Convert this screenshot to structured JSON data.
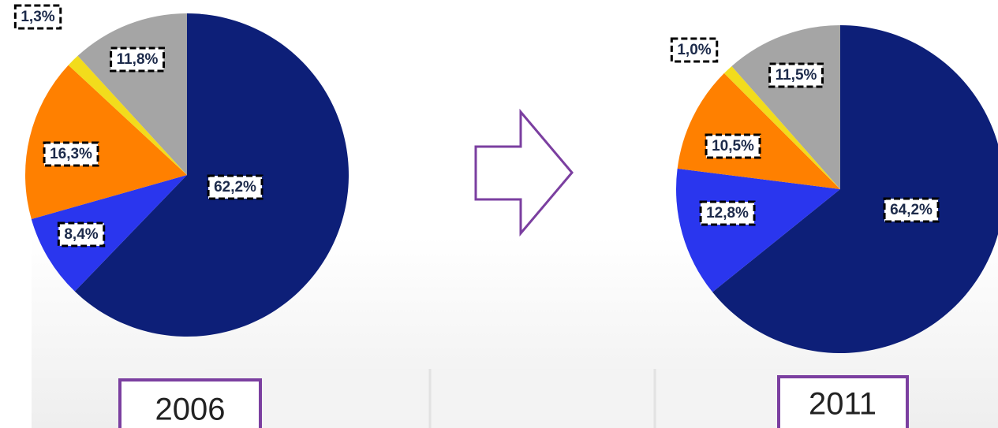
{
  "chart_data": [
    {
      "type": "pie",
      "title": "2006",
      "values": [
        62.2,
        8.4,
        16.3,
        1.3,
        11.8
      ],
      "value_labels": [
        "62,2%",
        "8,4%",
        "16,3%",
        "1,3%",
        "11,8%"
      ],
      "colors": [
        "#0d1f78",
        "#2a36ee",
        "#ff8000",
        "#f2dc1c",
        "#a5a5a5"
      ]
    },
    {
      "type": "pie",
      "title": "2011",
      "values": [
        64.2,
        12.8,
        10.5,
        1.0,
        11.5
      ],
      "value_labels": [
        "64,2%",
        "12,8%",
        "10,5%",
        "1,0%",
        "11,5%"
      ],
      "colors": [
        "#0d1f78",
        "#2a36ee",
        "#ff8000",
        "#f2dc1c",
        "#a5a5a5"
      ]
    }
  ]
}
